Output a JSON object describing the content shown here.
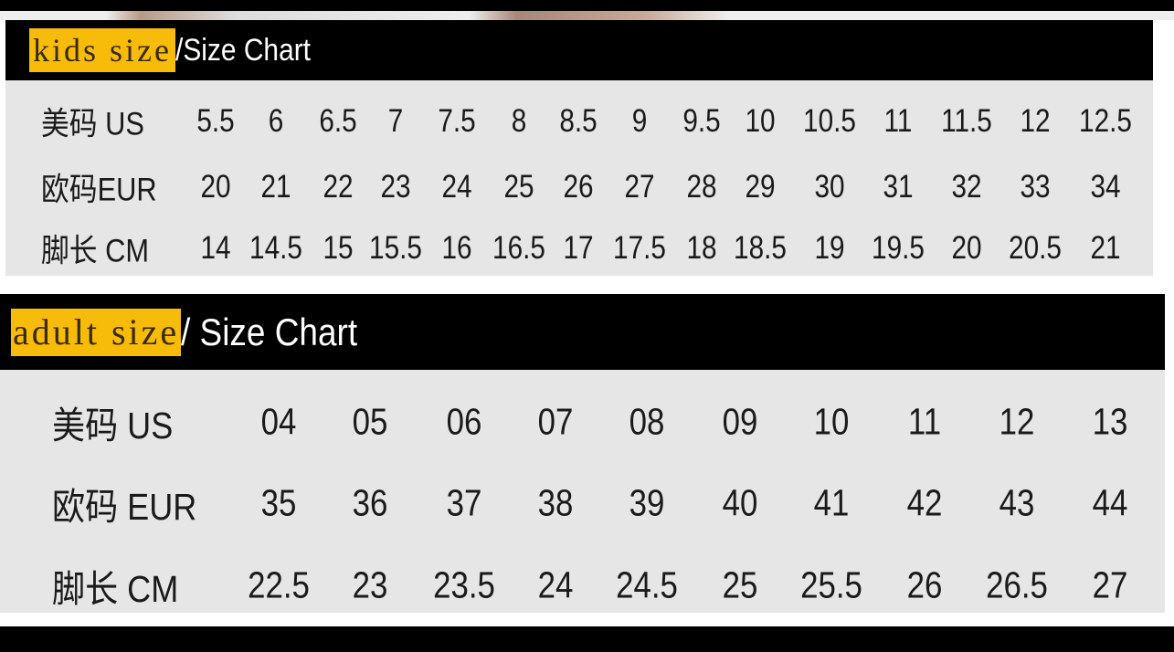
{
  "kids": {
    "tag": "kids size",
    "title": "/Size Chart",
    "rows": [
      {
        "label": "美码  US",
        "values": [
          "5.5",
          "6",
          "6.5",
          "7",
          "7.5",
          "8",
          "8.5",
          "9",
          "9.5",
          "10",
          "10.5",
          "11",
          "11.5",
          "12",
          "12.5"
        ]
      },
      {
        "label": "欧码EUR",
        "values": [
          "20",
          "21",
          "22",
          "23",
          "24",
          "25",
          "26",
          "27",
          "28",
          "29",
          "30",
          "31",
          "32",
          "33",
          "34"
        ]
      },
      {
        "label": "脚长  CM",
        "values": [
          "14",
          "14.5",
          "15",
          "15.5",
          "16",
          "16.5",
          "17",
          "17.5",
          "18",
          "18.5",
          "19",
          "19.5",
          "20",
          "20.5",
          "21"
        ]
      }
    ]
  },
  "adult": {
    "tag": "adult size",
    "title": "/ Size Chart",
    "rows": [
      {
        "label": "美码   US",
        "values": [
          "04",
          "05",
          "06",
          "07",
          "08",
          "09",
          "10",
          "11",
          "12",
          "13"
        ]
      },
      {
        "label": "欧码 EUR",
        "values": [
          "35",
          "36",
          "37",
          "38",
          "39",
          "40",
          "41",
          "42",
          "43",
          "44"
        ]
      },
      {
        "label": "脚长  CM",
        "values": [
          "22.5",
          "23",
          "23.5",
          "24",
          "24.5",
          "25",
          "25.5",
          "26",
          "26.5",
          "27"
        ]
      }
    ]
  },
  "colors": {
    "highlight": "#f7bb0a",
    "header_bg": "#000000",
    "table_bg": "#e6e6e6"
  }
}
